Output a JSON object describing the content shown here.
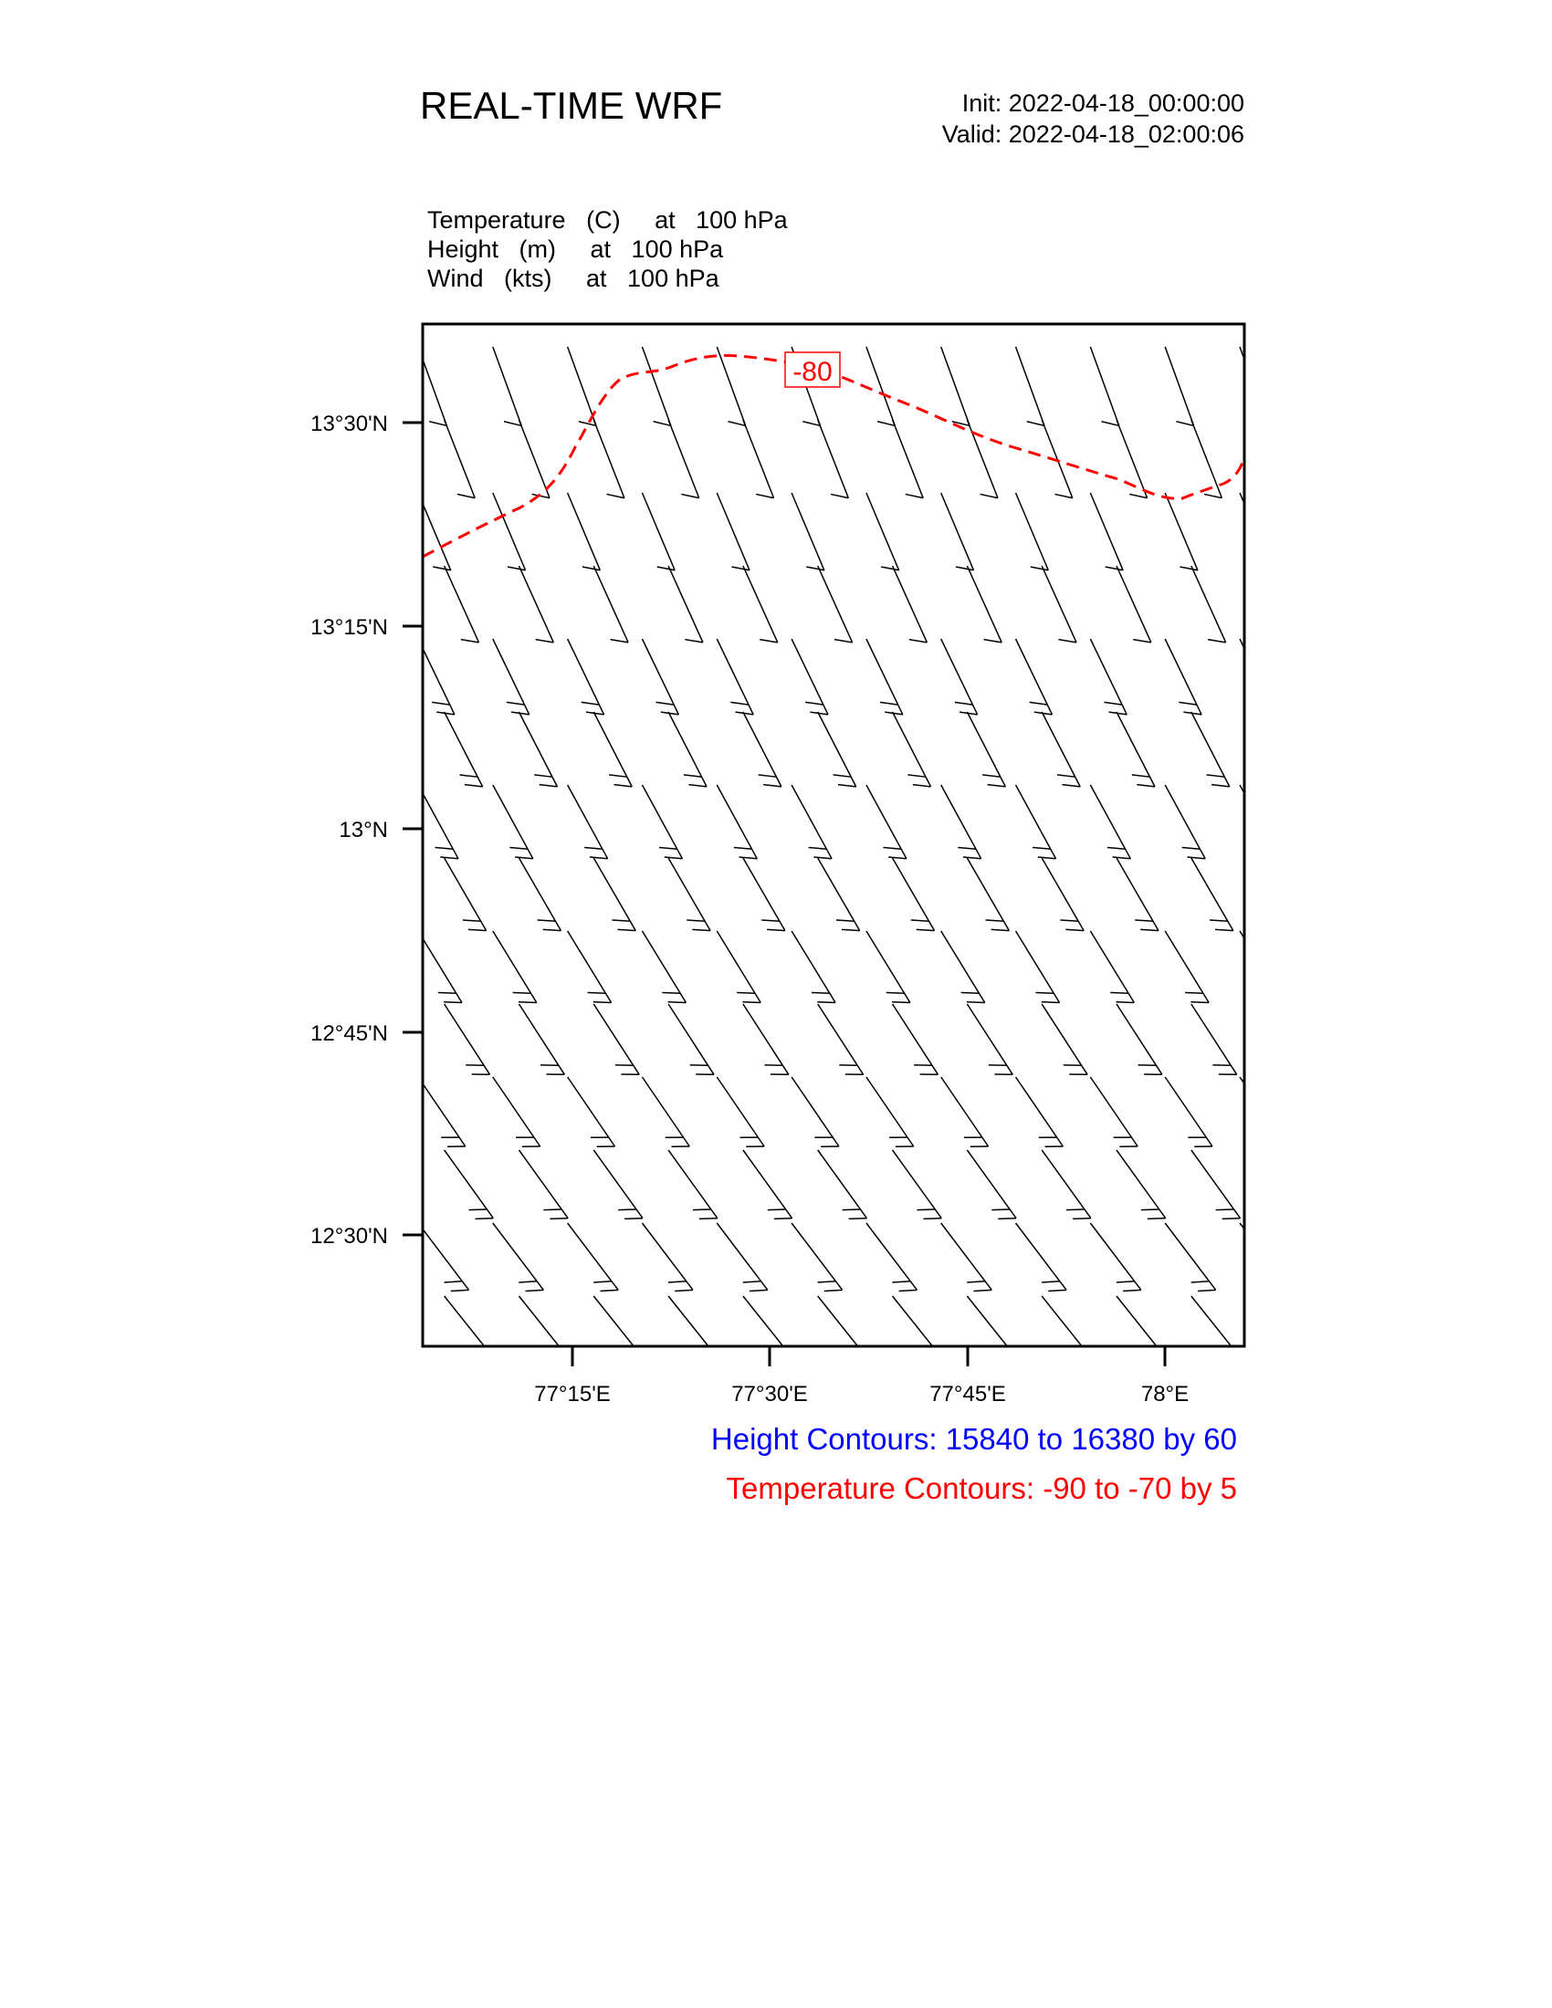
{
  "header": {
    "title": "REAL-TIME WRF",
    "init": "Init: 2022-04-18_00:00:00",
    "valid": "Valid: 2022-04-18_02:00:06"
  },
  "fields": [
    "Temperature   (C)     at   100 hPa",
    "Height   (m)     at   100 hPa",
    "Wind   (kts)     at   100 hPa"
  ],
  "map": {
    "lat_ticks": [
      "13°30'N",
      "13°15'N",
      "13°N",
      "12°45'N",
      "12°30'N"
    ],
    "lon_ticks": [
      "77°15'E",
      "77°30'E",
      "77°45'E",
      "78°E"
    ],
    "temperature_contour_label": "-80",
    "colors": {
      "temperature": "#ff0000",
      "height": "#0000ff",
      "wind": "#000000"
    }
  },
  "captions": {
    "height": "Height Contours: 15840 to 16380 by 60",
    "temperature": "Temperature Contours: -90 to -70 by 5"
  }
}
